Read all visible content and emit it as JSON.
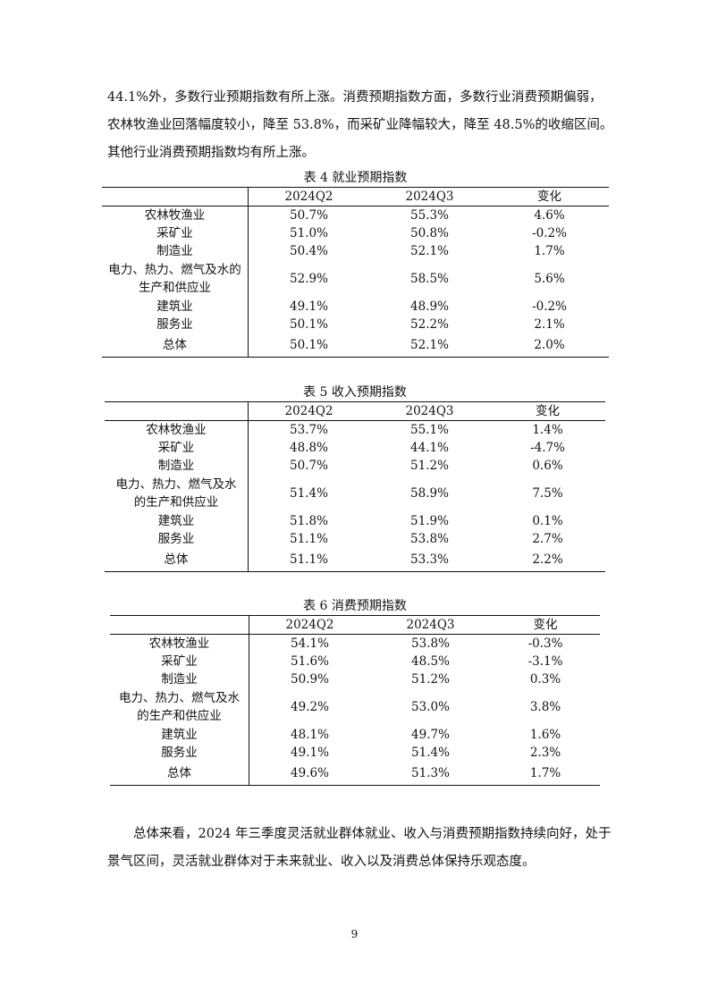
{
  "intro": [
    "44.1%外，多数行业预期指数有所上涨。消费预期指数方面，多数行业消费预期偏弱，",
    "农林牧渔业回落幅度较小，降至 53.8%，而采矿业降幅较大，降至 48.5%的收缩区间。",
    "其他行业消费预期指数均有所上涨。"
  ],
  "tables": [
    {
      "caption": "表 4  就业预期指数",
      "headers": [
        "",
        "2024Q2",
        "2024Q3",
        "变化"
      ],
      "rows": [
        {
          "industry": "农林牧渔业",
          "q2": "50.7%",
          "q3": "55.3%",
          "change": "4.6%"
        },
        {
          "industry": "采矿业",
          "q2": "51.0%",
          "q3": "50.8%",
          "change": "-0.2%"
        },
        {
          "industry": "制造业",
          "q2": "50.4%",
          "q3": "52.1%",
          "change": "1.7%"
        },
        {
          "industry_lines": [
            "电力、热力、燃气及水的",
            "生产和供应业"
          ],
          "q2": "52.9%",
          "q3": "58.5%",
          "change": "5.6%"
        },
        {
          "industry": "建筑业",
          "q2": "49.1%",
          "q3": "48.9%",
          "change": "-0.2%"
        },
        {
          "industry": "服务业",
          "q2": "50.1%",
          "q3": "52.2%",
          "change": "2.1%"
        },
        {
          "industry": "总体",
          "q2": "50.1%",
          "q3": "52.1%",
          "change": "2.0%"
        }
      ]
    },
    {
      "caption": "表 5  收入预期指数",
      "headers": [
        "",
        "2024Q2",
        "2024Q3",
        "变化"
      ],
      "rows": [
        {
          "industry": "农林牧渔业",
          "q2": "53.7%",
          "q3": "55.1%",
          "change": "1.4%"
        },
        {
          "industry": "采矿业",
          "q2": "48.8%",
          "q3": "44.1%",
          "change": "-4.7%"
        },
        {
          "industry": "制造业",
          "q2": "50.7%",
          "q3": "51.2%",
          "change": "0.6%"
        },
        {
          "industry_lines": [
            "电力、热力、燃气及水",
            "的生产和供应业"
          ],
          "q2": "51.4%",
          "q3": "58.9%",
          "change": "7.5%"
        },
        {
          "industry": "建筑业",
          "q2": "51.8%",
          "q3": "51.9%",
          "change": "0.1%"
        },
        {
          "industry": "服务业",
          "q2": "51.1%",
          "q3": "53.8%",
          "change": "2.7%"
        },
        {
          "industry": "总体",
          "q2": "51.1%",
          "q3": "53.3%",
          "change": "2.2%"
        }
      ]
    },
    {
      "caption": "表 6  消费预期指数",
      "headers": [
        "",
        "2024Q2",
        "2024Q3",
        "变化"
      ],
      "rows": [
        {
          "industry": "农林牧渔业",
          "q2": "54.1%",
          "q3": "53.8%",
          "change": "-0.3%"
        },
        {
          "industry": "采矿业",
          "q2": "51.6%",
          "q3": "48.5%",
          "change": "-3.1%"
        },
        {
          "industry": "制造业",
          "q2": "50.9%",
          "q3": "51.2%",
          "change": "0.3%"
        },
        {
          "industry_lines": [
            "电力、热力、燃气及水",
            "的生产和供应业"
          ],
          "q2": "49.2%",
          "q3": "53.0%",
          "change": "3.8%"
        },
        {
          "industry": "建筑业",
          "q2": "48.1%",
          "q3": "49.7%",
          "change": "1.6%"
        },
        {
          "industry": "服务业",
          "q2": "49.1%",
          "q3": "51.4%",
          "change": "2.3%"
        },
        {
          "industry": "总体",
          "q2": "49.6%",
          "q3": "51.3%",
          "change": "1.7%"
        }
      ]
    }
  ],
  "summary": [
    "总体来看，2024 年三季度灵活就业群体就业、收入与消费预期指数持续向好，处于",
    "景气区间，灵活就业群体对于未来就业、收入以及消费总体保持乐观态度。"
  ],
  "page_number": "9"
}
